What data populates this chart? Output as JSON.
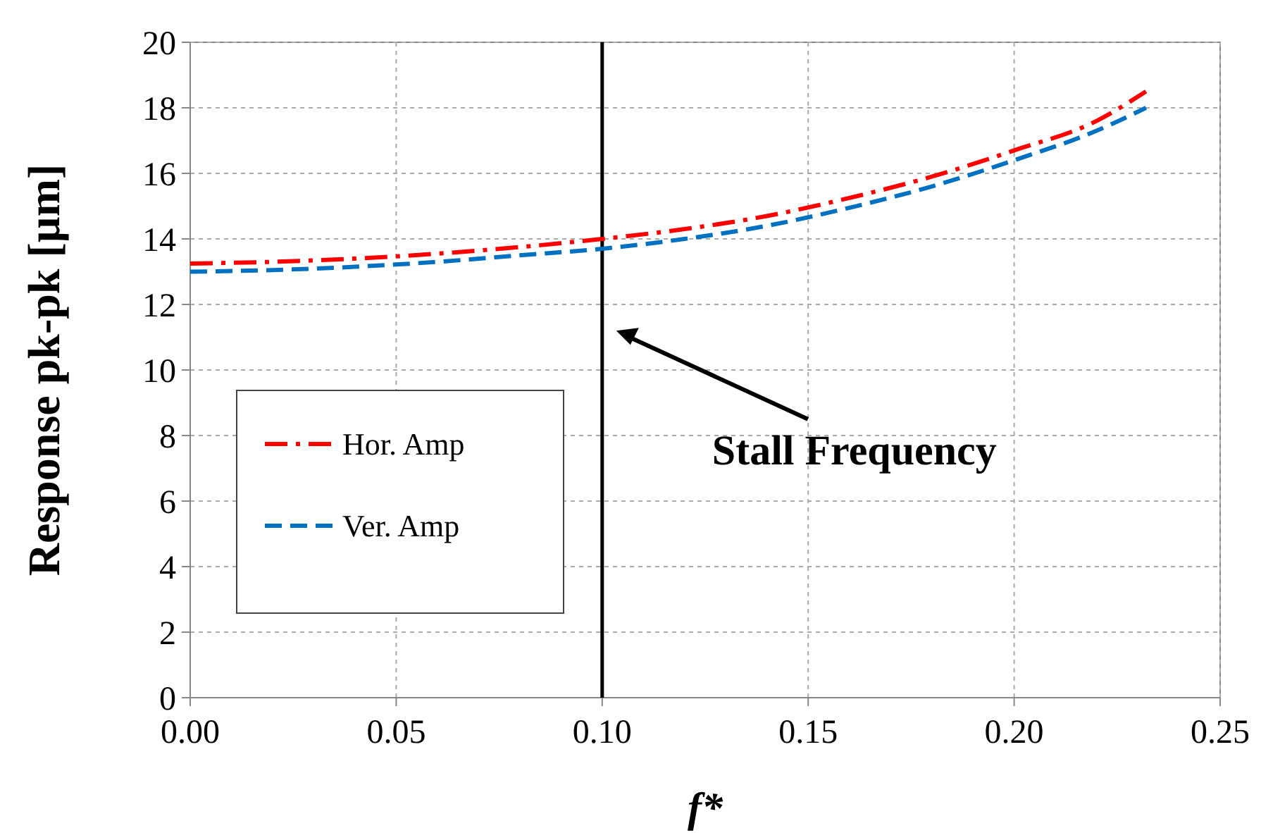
{
  "chart_data": {
    "type": "line",
    "xlabel": "f*",
    "ylabel": "Response pk-pk [µm]",
    "x": [
      0,
      0.02,
      0.04,
      0.06,
      0.08,
      0.1,
      0.12,
      0.14,
      0.16,
      0.18,
      0.2,
      0.22,
      0.232
    ],
    "series": [
      {
        "name": "Hor.  Amp",
        "color": "#ff0000",
        "line_style": "dashdot",
        "values": [
          13.25,
          13.3,
          13.4,
          13.55,
          13.75,
          14.0,
          14.3,
          14.7,
          15.25,
          15.9,
          16.7,
          17.6,
          18.5
        ]
      },
      {
        "name": "Ver. Amp",
        "color": "#0070c0",
        "line_style": "dashed",
        "values": [
          13.0,
          13.05,
          13.15,
          13.3,
          13.5,
          13.7,
          14.0,
          14.4,
          14.95,
          15.6,
          16.4,
          17.3,
          18.0
        ]
      }
    ],
    "xlim": [
      0,
      0.25
    ],
    "xticks": [
      {
        "value": 0,
        "label": "0.00"
      },
      {
        "value": 0.05,
        "label": "0.05"
      },
      {
        "value": 0.1,
        "label": "0.10"
      },
      {
        "value": 0.15,
        "label": "0.15"
      },
      {
        "value": 0.2,
        "label": "0.20"
      },
      {
        "value": 0.25,
        "label": "0.25"
      }
    ],
    "ylim": [
      0,
      20
    ],
    "yticks": [
      0,
      2,
      4,
      6,
      8,
      10,
      12,
      14,
      16,
      18,
      20
    ],
    "ref_lines": [
      {
        "axis": "x",
        "value": 0.1,
        "label": "Stall Frequency",
        "color": "#000000"
      }
    ],
    "grid": true,
    "legend": "bottom left",
    "marker": "none"
  }
}
